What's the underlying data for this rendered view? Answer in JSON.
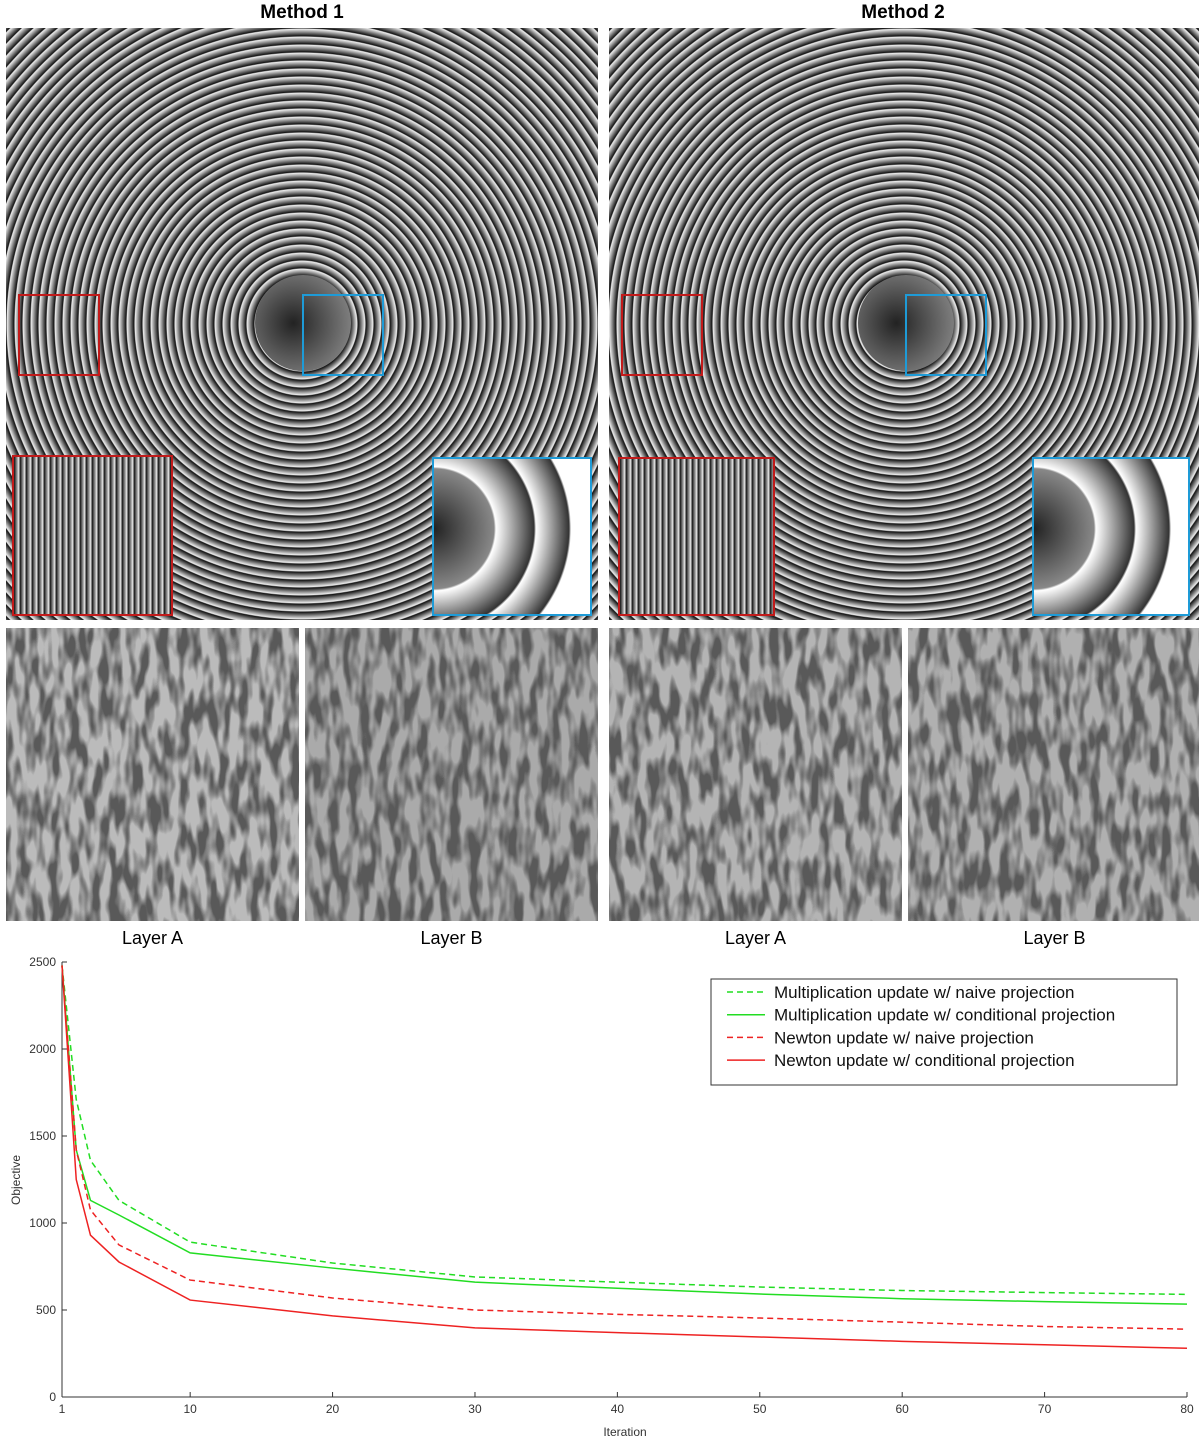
{
  "panels": [
    {
      "title": "Method 1",
      "layers": [
        "Layer A",
        "Layer B"
      ]
    },
    {
      "title": "Method 2",
      "layers": [
        "Layer A",
        "Layer B"
      ]
    }
  ],
  "chart_data": {
    "type": "line",
    "x_label": "Iteration",
    "y_label": "Objective",
    "x": [
      1,
      2,
      3,
      5,
      10,
      20,
      30,
      40,
      50,
      60,
      70,
      80
    ],
    "series": [
      {
        "name": "Multiplication update w/ naive projection",
        "color": "#22dd22",
        "dashed": true,
        "values": [
          2480,
          1710,
          1360,
          1130,
          890,
          770,
          690,
          660,
          632,
          612,
          600,
          590
        ]
      },
      {
        "name": "Multiplication update w/ conditional projection",
        "color": "#22dd22",
        "dashed": false,
        "values": [
          2480,
          1420,
          1130,
          1046,
          828,
          741,
          660,
          625,
          592,
          565,
          548,
          534
        ]
      },
      {
        "name": "Newton update w/ naive projection",
        "color": "#ee2222",
        "dashed": true,
        "values": [
          2480,
          1420,
          1075,
          874,
          672,
          569,
          500,
          475,
          454,
          430,
          405,
          390
        ]
      },
      {
        "name": "Newton update w/ conditional projection",
        "color": "#ee2222",
        "dashed": false,
        "values": [
          2480,
          1250,
          930,
          776,
          557,
          466,
          397,
          370,
          345,
          320,
          300,
          280
        ]
      }
    ],
    "xlim": [
      1,
      80
    ],
    "xticks": [
      1,
      10,
      20,
      30,
      40,
      50,
      60,
      70,
      80
    ],
    "ylim": [
      0,
      2500
    ],
    "yticks": [
      0,
      500,
      1000,
      1500,
      2000,
      2500
    ],
    "legend": "upper right"
  }
}
